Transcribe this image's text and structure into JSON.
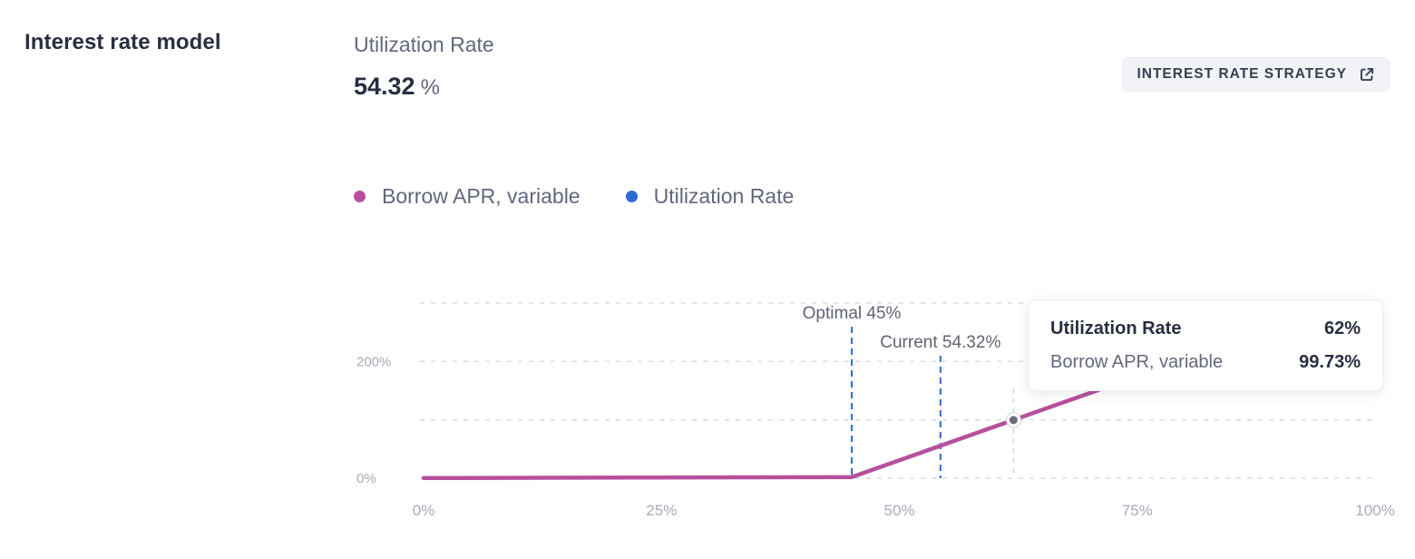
{
  "theme": {
    "text_dark": "#292e41",
    "text_gray": "#62677b",
    "axis_text": "#a6abb8",
    "marker_text": "#5f6472",
    "grid": "#d8dbe2",
    "hover_line": "#d3d6dd",
    "purple": "#b6509e",
    "blue": "#2e6bd3",
    "button_bg": "#f2f3f7",
    "button_text": "#383d51",
    "dot_fill": "#6e6a78",
    "dot_ring": "#cfd3da"
  },
  "header": {
    "title": "Interest rate model",
    "metric_label": "Utilization Rate",
    "metric_value": "54.32",
    "metric_unit": "%",
    "strategy_button_label": "INTEREST RATE STRATEGY"
  },
  "legend": {
    "items": [
      {
        "label": "Borrow APR, variable",
        "color": "#b6509e"
      },
      {
        "label": "Utilization Rate",
        "color": "#2e6bd3"
      }
    ]
  },
  "chart_data": {
    "type": "line",
    "title": "Interest rate model",
    "xlabel": "Utilization rate",
    "ylabel": "Borrow APR",
    "grid": "horizontal-dashed",
    "legend_position": "top",
    "x_axis": {
      "min": 0,
      "max": 100,
      "ticks": [
        {
          "text": "0%",
          "value": 0
        },
        {
          "text": "25%",
          "value": 25
        },
        {
          "text": "50%",
          "value": 50
        },
        {
          "text": "75%",
          "value": 75
        },
        {
          "text": "100%",
          "value": 100
        }
      ]
    },
    "y_axis": {
      "min": 0,
      "max": 300,
      "gridlines": [
        0,
        100,
        200,
        300
      ],
      "labels": [
        {
          "text": "200%",
          "value": 200
        },
        {
          "text": "0%",
          "value": 0
        }
      ]
    },
    "series": [
      {
        "name": "Borrow APR, variable",
        "color": "#b6509e",
        "points": [
          [
            0,
            0.3
          ],
          [
            45,
            2
          ],
          [
            96.8,
            300
          ]
        ]
      }
    ],
    "reference_lines": [
      {
        "text": "Optimal 45%",
        "value": 45
      },
      {
        "text": "Current 54.32%",
        "value": 54.32
      }
    ],
    "hover_point": {
      "x": 62,
      "y": 99.73
    }
  },
  "tooltip": {
    "rows": [
      {
        "label": "Utilization Rate",
        "value": "62%"
      },
      {
        "label": "Borrow APR, variable",
        "value": "99.73%"
      }
    ]
  }
}
